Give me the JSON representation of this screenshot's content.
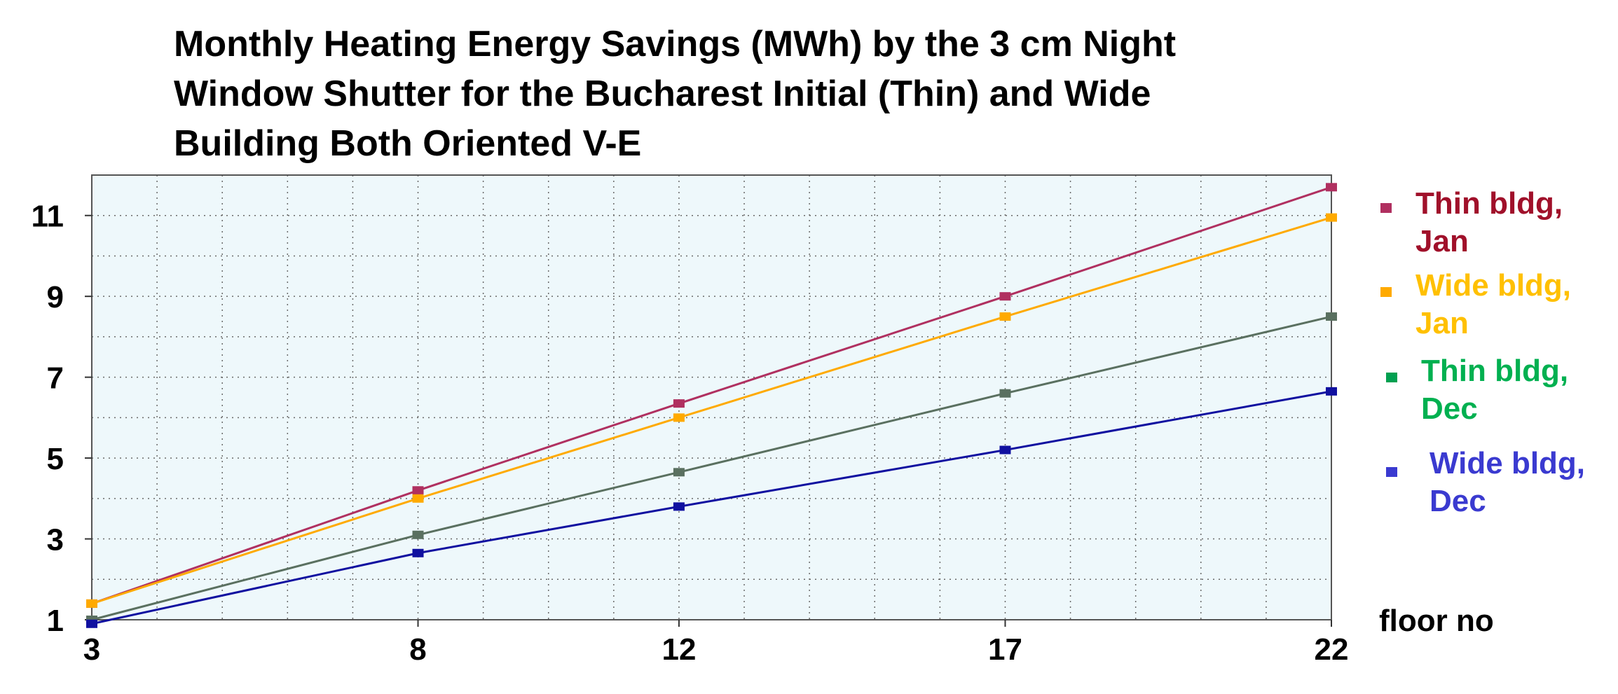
{
  "chart_data": {
    "type": "line",
    "title_lines": [
      "Monthly Heating Energy Savings (MWh) by the 3 cm Night",
      "Window Shutter for the Bucharest Initial (Thin) and Wide",
      "Building Both Oriented V-E"
    ],
    "xlabel": "floor no",
    "ylabel": "",
    "x": [
      3,
      8,
      12,
      17,
      22
    ],
    "x_ticks": [
      "3",
      "8",
      "12",
      "17",
      "22"
    ],
    "y_ticks": [
      "1",
      "3",
      "5",
      "7",
      "9",
      "11"
    ],
    "xlim": [
      3,
      22
    ],
    "ylim": [
      1,
      12
    ],
    "grid": true,
    "legend_position": "right",
    "background": "#eef8fb",
    "series": [
      {
        "name_lines": [
          "Thin bldg,",
          "Jan"
        ],
        "line_color": "#b03060",
        "text_color": "#a0102a",
        "values": [
          1.4,
          4.2,
          6.35,
          9.0,
          11.7
        ]
      },
      {
        "name_lines": [
          "Wide bldg,",
          "Jan"
        ],
        "line_color": "#ffaa00",
        "text_color": "#ffc000",
        "values": [
          1.4,
          4.0,
          6.0,
          8.5,
          10.95
        ]
      },
      {
        "name_lines": [
          "Thin bldg,",
          "Dec"
        ],
        "line_color": "#5a7060",
        "text_color": "#00b050",
        "marker_color": "#00a050",
        "values": [
          1.0,
          3.1,
          4.65,
          6.6,
          8.5
        ]
      },
      {
        "name_lines": [
          "Wide bldg,",
          "Dec"
        ],
        "line_color": "#1010a0",
        "text_color": "#3a3ad0",
        "marker_color": "#3a3ad0",
        "values": [
          0.9,
          2.65,
          3.8,
          5.2,
          6.65
        ]
      }
    ]
  }
}
